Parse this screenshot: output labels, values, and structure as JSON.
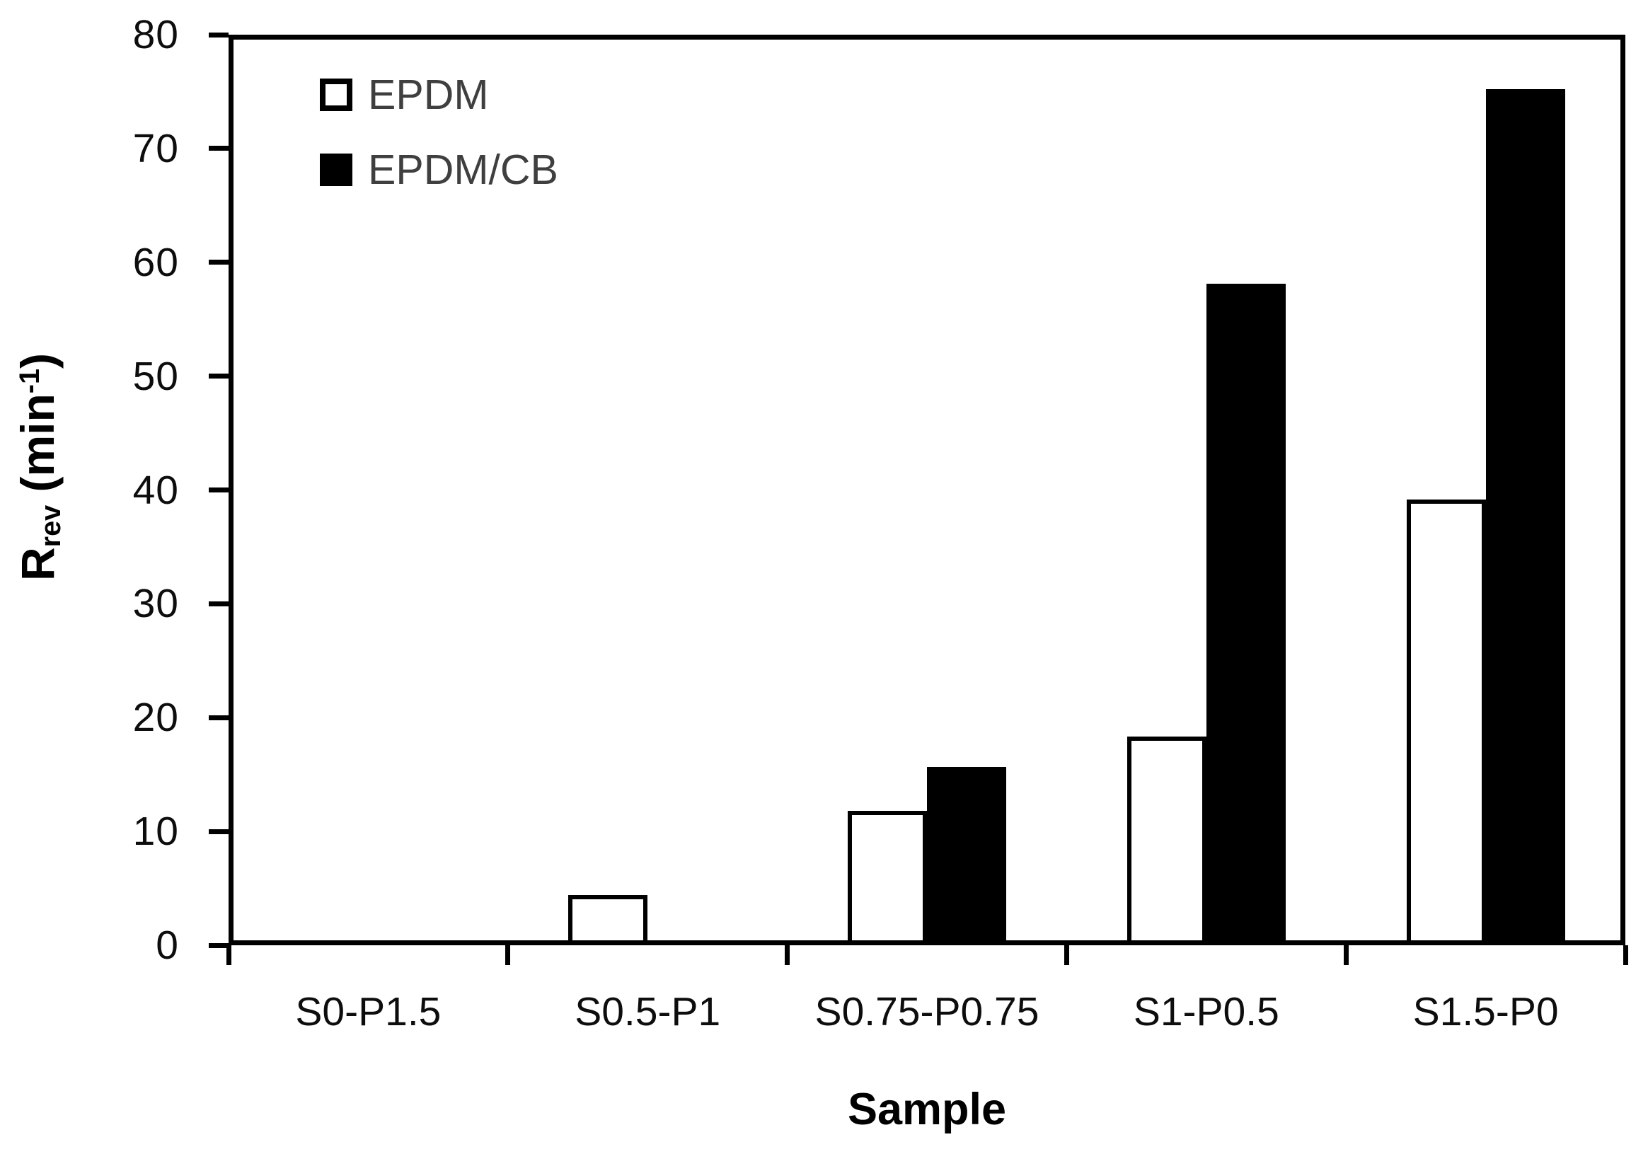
{
  "chart_data": {
    "type": "bar",
    "categories": [
      "S0-P1.5",
      "S0.5-P1",
      "S0.75-P0.75",
      "S1-P0.5",
      "S1.5-P0"
    ],
    "series": [
      {
        "name": "EPDM",
        "fill": "#ffffff",
        "stroke": "#000000",
        "values": [
          0,
          4,
          11.4,
          17.9,
          38.7
        ]
      },
      {
        "name": "EPDM/CB",
        "fill": "#000000",
        "stroke": "#000000",
        "values": [
          0,
          0,
          15.2,
          57.7,
          74.8
        ]
      }
    ],
    "xlabel": "Sample",
    "ylabel": {
      "main": "R",
      "sub": "rev",
      "mid": " (min",
      "sup": "-1",
      "end": ")"
    },
    "ylim": [
      0,
      80
    ],
    "yticks": [
      0,
      10,
      20,
      30,
      40,
      50,
      60,
      70,
      80
    ],
    "legend_position": "top-left-inside",
    "grid": false,
    "axis_color": "#000000",
    "background": "#ffffff"
  }
}
